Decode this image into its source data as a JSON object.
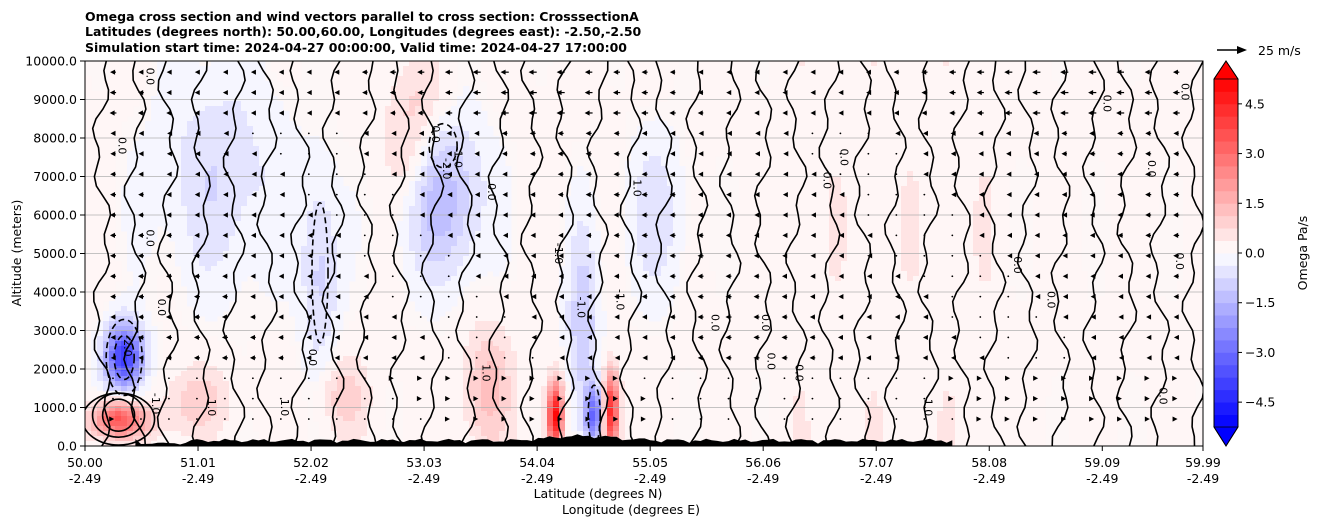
{
  "chart_data": {
    "type": "heatmap",
    "title_lines": [
      "Omega cross section and wind vectors parallel to cross section: CrosssectionA",
      "Latitudes (degrees north): 50.00,60.00, Longitudes (degrees east): -2.50,-2.50",
      "Simulation start time: 2024-04-27 00:00:00, Valid time: 2024-04-27 17:00:00"
    ],
    "ylabel": "Altitude (meters)",
    "xlabel_lat": "Latitude (degrees N)",
    "xlabel_lon": "Longitude (degrees E)",
    "ylim": [
      0,
      10000
    ],
    "xlim": [
      50.0,
      59.99
    ],
    "y_ticks": [
      0,
      1000,
      2000,
      3000,
      4000,
      5000,
      6000,
      7000,
      8000,
      9000,
      10000
    ],
    "y_tick_labels": [
      "0.0",
      "1000.0",
      "2000.0",
      "3000.0",
      "4000.0",
      "5000.0",
      "6000.0",
      "7000.0",
      "8000.0",
      "9000.0",
      "10000.0"
    ],
    "x_ticks": [
      50.0,
      51.01,
      52.02,
      53.03,
      54.04,
      55.05,
      56.06,
      57.07,
      58.08,
      59.09,
      59.99
    ],
    "x_tick_lat_labels": [
      "50.00",
      "51.01",
      "52.02",
      "53.03",
      "54.04",
      "55.05",
      "56.06",
      "57.07",
      "58.08",
      "59.09",
      "59.99"
    ],
    "x_tick_lon_labels": [
      "-2.49",
      "-2.49",
      "-2.49",
      "-2.49",
      "-2.49",
      "-2.49",
      "-2.49",
      "-2.49",
      "-2.49",
      "-2.49",
      "-2.49"
    ],
    "grid": "horizontal",
    "colorbar": {
      "label": "Omega Pa/s",
      "range": [
        -5.25,
        5.25
      ],
      "levels_step": 0.375,
      "ticks": [
        -4.5,
        -3.0,
        -1.5,
        0.0,
        1.5,
        3.0,
        4.5
      ],
      "tick_labels": [
        "−4.5",
        "−3.0",
        "−1.5",
        "0.0",
        "1.5",
        "3.0",
        "4.5"
      ],
      "colormap": "bwr",
      "extend": "both"
    },
    "quiver_key": {
      "label": "25 m/s",
      "value": 25
    },
    "contour_labels": [
      "-2.0",
      "-1.0",
      "0.0",
      "1.0"
    ],
    "features": [
      {
        "name": "negative omega maximum (upward motion)",
        "lat": 50.35,
        "alt": 2300,
        "value": -4.0
      },
      {
        "name": "positive omega maximum",
        "lat": 50.3,
        "alt": 800,
        "value": 2.0
      },
      {
        "name": "strong positive omega band",
        "lat": 54.2,
        "alt": 900,
        "value": 5.0
      },
      {
        "name": "strong positive omega band",
        "lat": 54.7,
        "alt": 1000,
        "value": 4.5
      },
      {
        "name": "negative omega band",
        "lat": 54.55,
        "alt": 800,
        "value": -3.0
      },
      {
        "name": "negative omega region",
        "lat": 53.2,
        "alt": 6500,
        "value": -1.5
      }
    ]
  }
}
